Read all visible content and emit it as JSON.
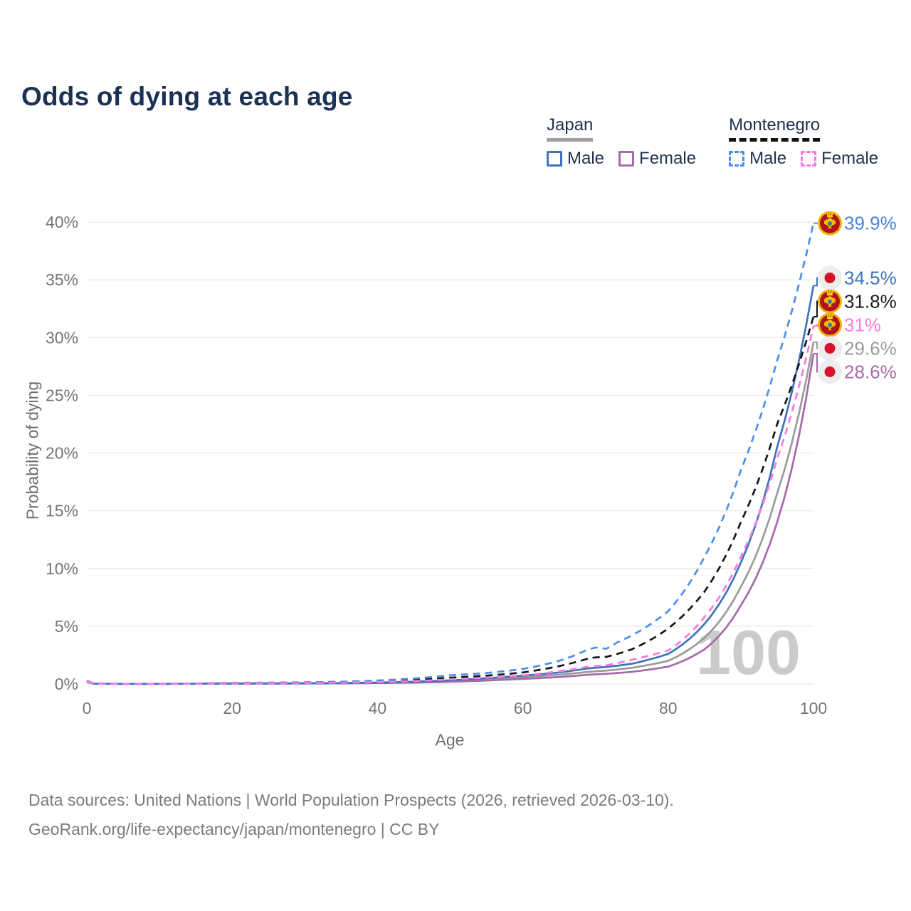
{
  "title": "Odds of dying at each age",
  "legend": {
    "groups": [
      {
        "name": "Japan",
        "line_style": "solid",
        "line_color": "#9e9e9e",
        "items": [
          {
            "label": "Male",
            "color": "#3e73bb"
          },
          {
            "label": "Female",
            "color": "#a36ba9"
          }
        ]
      },
      {
        "name": "Montenegro",
        "line_style": "dashed",
        "line_color": "#141414",
        "items": [
          {
            "label": "Male",
            "color": "#4b8fe8"
          },
          {
            "label": "Female",
            "color": "#fb79e1"
          }
        ]
      }
    ]
  },
  "chart_data": {
    "type": "line",
    "title": "Odds of dying at each age",
    "xlabel": "Age",
    "ylabel": "Probability of dying",
    "xlim": [
      0,
      100
    ],
    "ylim": [
      0,
      40
    ],
    "xticks": [
      0,
      20,
      40,
      60,
      80,
      100
    ],
    "yticks": [
      0,
      5,
      10,
      15,
      20,
      25,
      30,
      35,
      40
    ],
    "ytick_suffix": "%",
    "grid": "horizontal",
    "legend_position": "top-right",
    "watermark": "100",
    "ages": [
      0,
      1,
      5,
      10,
      15,
      20,
      25,
      30,
      35,
      40,
      45,
      50,
      55,
      60,
      65,
      69,
      70,
      71.5,
      73,
      75,
      80,
      85,
      90,
      95,
      100
    ],
    "series": [
      {
        "name": "Montenegro Male",
        "country": "Montenegro",
        "sex": "male",
        "flag": "montenegro",
        "color": "#4b8fe8",
        "label_color": "#4486db",
        "dash": true,
        "end_label": "39.9%",
        "values": [
          0.3,
          0.03,
          0.02,
          0.02,
          0.05,
          0.1,
          0.12,
          0.15,
          0.2,
          0.3,
          0.48,
          0.75,
          0.95,
          1.3,
          2.0,
          3.0,
          3.15,
          3.05,
          3.6,
          4.2,
          6.3,
          11.0,
          18.5,
          28.0,
          39.9
        ]
      },
      {
        "name": "Japan Male",
        "country": "Japan",
        "sex": "male",
        "flag": "japan",
        "color": "#3e73bb",
        "label_color": "#3e73bb",
        "dash": false,
        "end_label": "34.5%",
        "values": [
          0.2,
          0.02,
          0.01,
          0.01,
          0.025,
          0.045,
          0.05,
          0.06,
          0.08,
          0.12,
          0.2,
          0.32,
          0.5,
          0.72,
          1.0,
          1.35,
          1.4,
          1.48,
          1.58,
          1.75,
          2.6,
          5.2,
          10.5,
          20.5,
          34.5
        ]
      },
      {
        "name": "Montenegro Both sexes",
        "country": "Montenegro",
        "sex": "both",
        "flag": "montenegro",
        "color": "#161616",
        "label_color": "#1a1a1a",
        "dash": true,
        "end_label": "31.8%",
        "values": [
          0.25,
          0.025,
          0.015,
          0.015,
          0.04,
          0.08,
          0.09,
          0.11,
          0.15,
          0.22,
          0.35,
          0.55,
          0.72,
          1.0,
          1.55,
          2.2,
          2.3,
          2.35,
          2.6,
          3.0,
          4.8,
          8.0,
          14.0,
          22.5,
          31.8
        ]
      },
      {
        "name": "Montenegro Female",
        "country": "Montenegro",
        "sex": "female",
        "flag": "montenegro",
        "color": "#fb79e1",
        "label_color": "#fb79e1",
        "dash": true,
        "end_label": "31%",
        "values": [
          0.22,
          0.02,
          0.015,
          0.015,
          0.03,
          0.05,
          0.06,
          0.08,
          0.11,
          0.16,
          0.25,
          0.4,
          0.55,
          0.75,
          1.1,
          1.5,
          1.55,
          1.62,
          1.8,
          2.1,
          2.9,
          5.8,
          11.0,
          19.5,
          31.0
        ]
      },
      {
        "name": "Japan Both sexes",
        "country": "Japan",
        "sex": "both",
        "flag": "japan",
        "color": "#9b9b9b",
        "label_color": "#9b9b9b",
        "dash": false,
        "end_label": "29.6%",
        "values": [
          0.18,
          0.018,
          0.01,
          0.01,
          0.02,
          0.035,
          0.04,
          0.05,
          0.065,
          0.1,
          0.16,
          0.25,
          0.4,
          0.58,
          0.8,
          1.05,
          1.1,
          1.16,
          1.25,
          1.4,
          2.0,
          4.0,
          8.4,
          16.5,
          29.6
        ]
      },
      {
        "name": "Japan Female",
        "country": "Japan",
        "sex": "female",
        "flag": "japan",
        "color": "#a36ba9",
        "label_color": "#a36ba9",
        "dash": false,
        "end_label": "28.6%",
        "values": [
          0.17,
          0.015,
          0.008,
          0.008,
          0.015,
          0.025,
          0.03,
          0.04,
          0.05,
          0.08,
          0.12,
          0.19,
          0.3,
          0.44,
          0.6,
          0.8,
          0.83,
          0.88,
          0.95,
          1.05,
          1.5,
          3.0,
          6.8,
          14.0,
          28.6
        ]
      }
    ]
  },
  "footer": {
    "line1": "Data sources: United Nations | World Population Prospects (2026, retrieved 2026-03-10).",
    "line2": "GeoRank.org/life-expectancy/japan/montenegro | CC BY"
  }
}
